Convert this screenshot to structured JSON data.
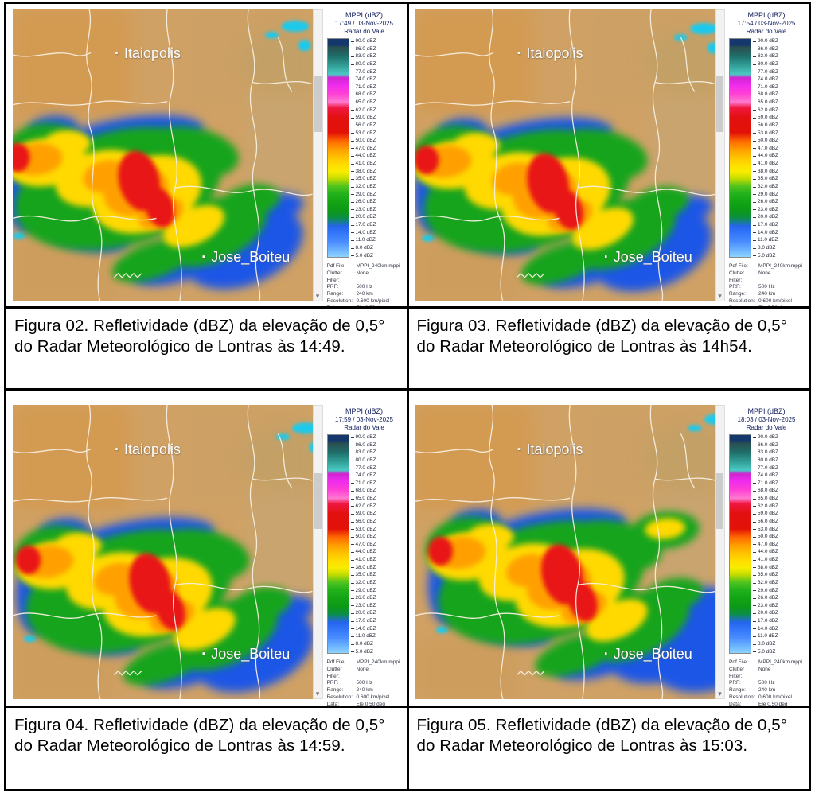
{
  "report": {
    "panels": [
      {
        "timestamp": "17:49 / 03-Nov-2025",
        "caption": "Figura 02. Refletividade (dBZ) da elevação de 0,5° do Radar Meteorológico de Lontras às 14:49."
      },
      {
        "timestamp": "17:54 / 03-Nov-2025",
        "caption": "Figura 03. Refletividade (dBZ) da elevação de 0,5° do Radar Meteorológico de Lontras às 14h54."
      },
      {
        "timestamp": "17:59 / 03-Nov-2025",
        "caption": "Figura 04. Refletividade (dBZ) da elevação de 0,5° do Radar Meteorológico de Lontras às 14:59."
      },
      {
        "timestamp": "18:03 / 03-Nov-2025",
        "caption": "Figura 05. Refletividade (dBZ) da elevação de 0,5° do Radar Meteorológico de Lontras às 15:03."
      }
    ],
    "legend": {
      "title": "MPPI (dBZ)",
      "radar_name": "Radar do Vale",
      "ticks": [
        "90.0 dBZ",
        "86.0 dBZ",
        "83.0 dBZ",
        "80.0 dBZ",
        "77.0 dBZ",
        "74.0 dBZ",
        "71.0 dBZ",
        "68.0 dBZ",
        "65.0 dBZ",
        "62.0 dBZ",
        "59.0 dBZ",
        "56.0 dBZ",
        "53.0 dBZ",
        "50.0 dBZ",
        "47.0 dBZ",
        "44.0 dBZ",
        "41.0 dBZ",
        "38.0 dBZ",
        "35.0 dBZ",
        "32.0 dBZ",
        "29.0 dBZ",
        "26.0 dBZ",
        "23.0 dBZ",
        "20.0 dBZ",
        "17.0 dBZ",
        "14.0 dBZ",
        "11.0 dBZ",
        "8.0 dBZ",
        "5.0 dBZ"
      ],
      "footer": [
        {
          "label": "Pdf File:",
          "value": "MPPI_240km.mppi"
        },
        {
          "label": "Clutter Filter:",
          "value": "None"
        },
        {
          "label": "PRF:",
          "value": "500 Hz"
        },
        {
          "label": "Range:",
          "value": "240 km"
        },
        {
          "label": "Resolution:",
          "value": "0.600 km/pixel"
        },
        {
          "label": "Data:",
          "value": "Ele 0.50 deg"
        }
      ]
    },
    "map_labels": {
      "marker": "·",
      "north_city": "Itaiopolis",
      "south_city": "Jose_Boiteu"
    },
    "scale_colors": {
      "land": "#d0a164",
      "blue": "#1e56e6",
      "cyan": "#1ec9ec",
      "green": "#12a41a",
      "yellow": "#ffd900",
      "orange": "#ffa000",
      "red": "#e81414"
    }
  }
}
